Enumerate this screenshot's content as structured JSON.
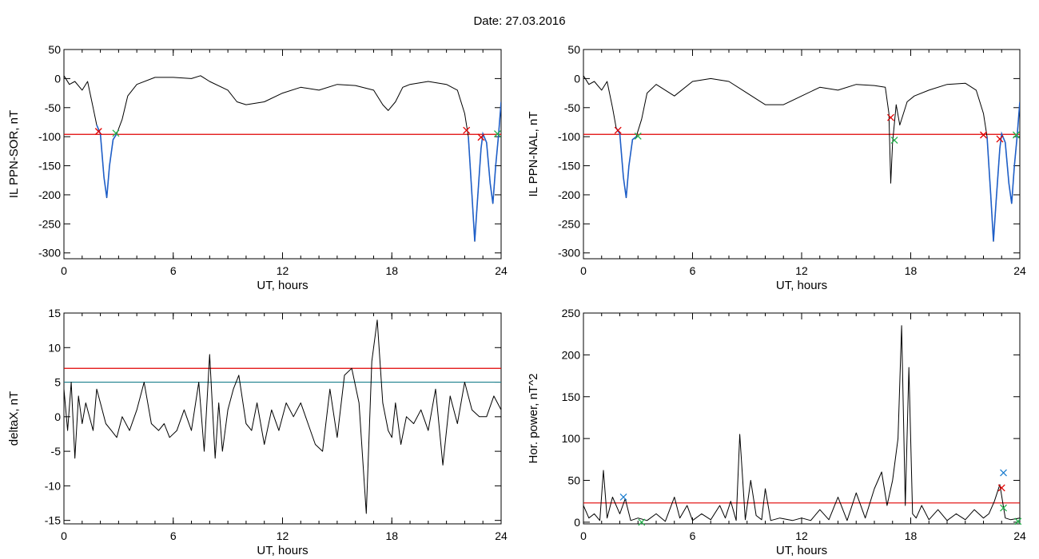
{
  "header": {
    "date_label": "Date:  27.03.2016"
  },
  "colors": {
    "line": "#000000",
    "threshold_red": "#e00000",
    "threshold_teal": "#1a7f8c",
    "event_blue": "#1f5fc8",
    "marker_red": "#e00000",
    "marker_green": "#22b04a",
    "marker_blue": "#1f7fd0"
  },
  "chart_data": [
    {
      "type": "line",
      "xlabel": "UT, hours",
      "ylabel": "IL PPN-SOR, nT",
      "xlim": [
        0,
        24
      ],
      "ylim": [
        -310,
        50
      ],
      "xticks": [
        0,
        6,
        12,
        18,
        24
      ],
      "yticks": [
        50,
        0,
        -50,
        -100,
        -150,
        -200,
        -250,
        -300
      ],
      "thresholds": [
        {
          "y": -96,
          "color": "red"
        }
      ],
      "x": [
        0,
        0.3,
        0.6,
        1.0,
        1.3,
        1.6,
        1.8,
        2.0,
        2.2,
        2.35,
        2.5,
        2.7,
        2.9,
        3.2,
        3.5,
        4.0,
        5.0,
        6.0,
        7.0,
        7.5,
        8.0,
        9.0,
        9.5,
        10.0,
        11.0,
        12.0,
        13.0,
        14.0,
        15.0,
        16.0,
        17.0,
        17.5,
        17.8,
        18.2,
        18.6,
        19.0,
        20.0,
        21.0,
        21.6,
        22.0,
        22.2,
        22.4,
        22.55,
        22.7,
        22.9,
        23.0,
        23.2,
        23.4,
        23.55,
        23.7,
        23.85,
        24.0
      ],
      "y": [
        5,
        -10,
        -5,
        -20,
        -5,
        -50,
        -80,
        -95,
        -170,
        -205,
        -150,
        -105,
        -95,
        -70,
        -30,
        -10,
        2,
        2,
        0,
        5,
        -5,
        -20,
        -40,
        -45,
        -40,
        -25,
        -15,
        -20,
        -10,
        -12,
        -20,
        -45,
        -55,
        -40,
        -15,
        -10,
        -5,
        -10,
        -20,
        -60,
        -100,
        -200,
        -280,
        -210,
        -120,
        -95,
        -110,
        -180,
        -215,
        -150,
        -100,
        -40
      ],
      "event_segments": [
        [
          1.8,
          2.9
        ],
        [
          22.2,
          24.0
        ]
      ],
      "markers": [
        {
          "x": 1.9,
          "y": -91,
          "color": "red"
        },
        {
          "x": 2.85,
          "y": -94,
          "color": "green"
        },
        {
          "x": 22.1,
          "y": -89,
          "color": "red"
        },
        {
          "x": 22.9,
          "y": -101,
          "color": "red"
        },
        {
          "x": 23.8,
          "y": -95,
          "color": "green"
        }
      ]
    },
    {
      "type": "line",
      "xlabel": "UT, hours",
      "ylabel": "IL PPN-NAL, nT",
      "xlim": [
        0,
        24
      ],
      "ylim": [
        -310,
        50
      ],
      "xticks": [
        0,
        6,
        12,
        18,
        24
      ],
      "yticks": [
        50,
        0,
        -50,
        -100,
        -150,
        -200,
        -250,
        -300
      ],
      "thresholds": [
        {
          "y": -96,
          "color": "red"
        }
      ],
      "x": [
        0,
        0.3,
        0.6,
        1.0,
        1.3,
        1.6,
        1.8,
        2.0,
        2.2,
        2.35,
        2.5,
        2.7,
        2.9,
        3.2,
        3.5,
        4.0,
        5.0,
        6.0,
        7.0,
        8.0,
        9.0,
        10.0,
        11.0,
        12.0,
        13.0,
        14.0,
        15.0,
        16.0,
        16.6,
        16.8,
        16.9,
        17.0,
        17.2,
        17.4,
        17.6,
        17.8,
        18.2,
        19.0,
        20.0,
        21.0,
        21.6,
        22.0,
        22.2,
        22.4,
        22.55,
        22.7,
        22.9,
        23.0,
        23.2,
        23.4,
        23.55,
        23.7,
        23.85,
        24.0
      ],
      "y": [
        5,
        -10,
        -5,
        -20,
        -5,
        -50,
        -85,
        -95,
        -170,
        -205,
        -150,
        -105,
        -100,
        -70,
        -25,
        -10,
        -30,
        -5,
        0,
        -5,
        -25,
        -45,
        -45,
        -30,
        -15,
        -20,
        -10,
        -12,
        -15,
        -60,
        -180,
        -110,
        -45,
        -80,
        -60,
        -40,
        -30,
        -20,
        -10,
        -8,
        -20,
        -60,
        -100,
        -200,
        -280,
        -210,
        -120,
        -95,
        -110,
        -180,
        -215,
        -150,
        -100,
        -40
      ],
      "event_segments": [
        [
          1.8,
          3.0
        ],
        [
          22.2,
          24.0
        ]
      ],
      "markers": [
        {
          "x": 1.9,
          "y": -89,
          "color": "red"
        },
        {
          "x": 3.0,
          "y": -99,
          "color": "green"
        },
        {
          "x": 16.9,
          "y": -67,
          "color": "red"
        },
        {
          "x": 17.1,
          "y": -106,
          "color": "green"
        },
        {
          "x": 22.0,
          "y": -97,
          "color": "red"
        },
        {
          "x": 22.9,
          "y": -104,
          "color": "red"
        },
        {
          "x": 23.8,
          "y": -97,
          "color": "green"
        }
      ]
    },
    {
      "type": "line",
      "xlabel": "UT, hours",
      "ylabel": "deltaX, nT",
      "xlim": [
        0,
        24
      ],
      "ylim": [
        -15.5,
        15
      ],
      "xticks": [
        0,
        6,
        12,
        18,
        24
      ],
      "yticks": [
        15,
        10,
        5,
        0,
        -5,
        -10,
        -15
      ],
      "thresholds": [
        {
          "y": 7,
          "color": "red"
        },
        {
          "y": 5,
          "color": "teal"
        }
      ],
      "x": [
        0,
        0.2,
        0.4,
        0.6,
        0.8,
        1.0,
        1.2,
        1.4,
        1.6,
        1.8,
        2.0,
        2.3,
        2.6,
        2.9,
        3.2,
        3.6,
        4.0,
        4.4,
        4.8,
        5.2,
        5.5,
        5.8,
        6.2,
        6.6,
        7.0,
        7.4,
        7.7,
        8.0,
        8.3,
        8.5,
        8.7,
        9.0,
        9.3,
        9.6,
        10.0,
        10.3,
        10.6,
        11.0,
        11.4,
        11.8,
        12.2,
        12.6,
        13.0,
        13.4,
        13.8,
        14.2,
        14.6,
        15.0,
        15.4,
        15.8,
        16.2,
        16.6,
        16.9,
        17.2,
        17.5,
        17.8,
        18.0,
        18.2,
        18.5,
        18.8,
        19.2,
        19.6,
        20.0,
        20.4,
        20.8,
        21.2,
        21.6,
        22.0,
        22.4,
        22.8,
        23.2,
        23.6,
        24.0
      ],
      "y": [
        4,
        -2,
        5,
        -6,
        3,
        -1,
        2,
        0,
        -2,
        4,
        2,
        -1,
        -2,
        -3,
        0,
        -2,
        1,
        5,
        -1,
        -2,
        -1,
        -3,
        -2,
        1,
        -2,
        5,
        -5,
        9,
        -6,
        2,
        -5,
        1,
        4,
        6,
        -1,
        -2,
        2,
        -4,
        1,
        -2,
        2,
        0,
        2,
        -1,
        -4,
        -5,
        4,
        -3,
        6,
        7,
        2,
        -14,
        8,
        14,
        2,
        -2,
        -3,
        2,
        -4,
        0,
        -1,
        1,
        -2,
        4,
        -7,
        3,
        -1,
        5,
        1,
        0,
        0,
        3,
        1
      ],
      "event_segments": [],
      "markers": []
    },
    {
      "type": "line",
      "xlabel": "UT, hours",
      "ylabel": "Hor. power, nT^2",
      "xlim": [
        0,
        24
      ],
      "ylim": [
        -2,
        250
      ],
      "xticks": [
        0,
        6,
        12,
        18,
        24
      ],
      "yticks": [
        250,
        200,
        150,
        100,
        50,
        0
      ],
      "thresholds": [
        {
          "y": 23,
          "color": "red"
        }
      ],
      "x": [
        0,
        0.3,
        0.6,
        0.9,
        1.1,
        1.3,
        1.6,
        2.0,
        2.3,
        2.6,
        3.0,
        3.5,
        4.0,
        4.5,
        5.0,
        5.3,
        5.7,
        6.0,
        6.5,
        7.0,
        7.5,
        7.8,
        8.1,
        8.4,
        8.6,
        8.9,
        9.2,
        9.5,
        9.8,
        10.0,
        10.3,
        10.8,
        11.5,
        12.0,
        12.5,
        13.0,
        13.5,
        14.0,
        14.5,
        15.0,
        15.5,
        16.0,
        16.4,
        16.7,
        17.0,
        17.3,
        17.5,
        17.7,
        17.9,
        18.1,
        18.3,
        18.6,
        19.0,
        19.5,
        20.0,
        20.5,
        21.0,
        21.5,
        22.0,
        22.3,
        22.6,
        22.9,
        23.2,
        23.5,
        24.0
      ],
      "y": [
        20,
        5,
        10,
        2,
        62,
        5,
        30,
        10,
        28,
        2,
        5,
        2,
        10,
        1,
        30,
        5,
        20,
        2,
        10,
        3,
        20,
        5,
        25,
        2,
        105,
        3,
        50,
        8,
        3,
        40,
        2,
        5,
        2,
        5,
        2,
        15,
        3,
        30,
        2,
        35,
        5,
        40,
        60,
        20,
        50,
        100,
        235,
        20,
        185,
        10,
        5,
        20,
        3,
        15,
        2,
        10,
        3,
        15,
        5,
        10,
        25,
        45,
        5,
        3,
        5
      ],
      "event_segments": [],
      "markers": [
        {
          "x": 2.2,
          "y": 30,
          "color": "blue"
        },
        {
          "x": 3.2,
          "y": 0,
          "color": "green"
        },
        {
          "x": 23.1,
          "y": 59,
          "color": "blue"
        },
        {
          "x": 23.0,
          "y": 41,
          "color": "red"
        },
        {
          "x": 23.1,
          "y": 17,
          "color": "green"
        },
        {
          "x": 23.9,
          "y": 1,
          "color": "green"
        }
      ]
    }
  ]
}
